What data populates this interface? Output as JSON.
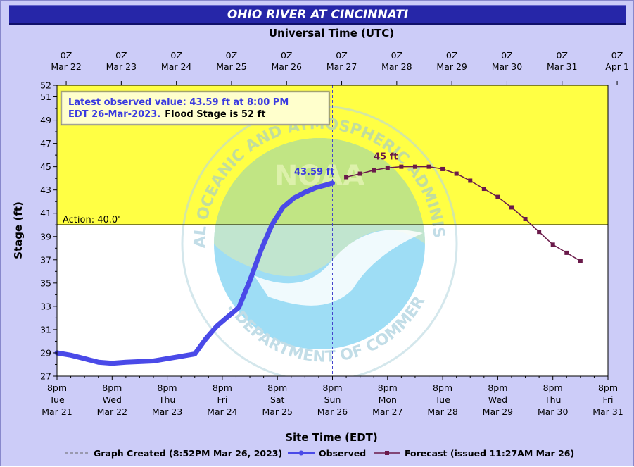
{
  "header": {
    "title": "OHIO RIVER AT CINCINNATI"
  },
  "top_axis": {
    "title": "Universal Time (UTC)",
    "labels": [
      [
        "0Z",
        "Mar 22"
      ],
      [
        "0Z",
        "Mar 23"
      ],
      [
        "0Z",
        "Mar 24"
      ],
      [
        "0Z",
        "Mar 25"
      ],
      [
        "0Z",
        "Mar 26"
      ],
      [
        "0Z",
        "Mar 27"
      ],
      [
        "0Z",
        "Mar 28"
      ],
      [
        "0Z",
        "Mar 29"
      ],
      [
        "0Z",
        "Mar 30"
      ],
      [
        "0Z",
        "Mar 31"
      ],
      [
        "0Z",
        "Apr  1"
      ]
    ]
  },
  "bottom_axis": {
    "title": "Site Time (EDT)",
    "labels": [
      [
        "8pm",
        "Tue",
        "Mar 21"
      ],
      [
        "8pm",
        "Wed",
        "Mar 22"
      ],
      [
        "8pm",
        "Thu",
        "Mar 23"
      ],
      [
        "8pm",
        "Fri",
        "Mar 24"
      ],
      [
        "8pm",
        "Sat",
        "Mar 25"
      ],
      [
        "8pm",
        "Sun",
        "Mar 26"
      ],
      [
        "8pm",
        "Mon",
        "Mar 27"
      ],
      [
        "8pm",
        "Tue",
        "Mar 28"
      ],
      [
        "8pm",
        "Wed",
        "Mar 29"
      ],
      [
        "8pm",
        "Thu",
        "Mar 30"
      ],
      [
        "8pm",
        "Fri",
        "Mar 31"
      ]
    ]
  },
  "info_box": {
    "line1": "Latest observed value: 43.59 ft at 8:00 PM",
    "line2": "EDT 26-Mar-2023.",
    "line2_b": "Flood Stage is 52 ft"
  },
  "legend": {
    "created": "Graph Created (8:52PM Mar 26, 2023)",
    "observed": "Observed",
    "forecast": "Forecast (issued 11:27AM Mar 26)"
  },
  "watermark": {
    "top_text": "NATIONAL OCEANIC AND ATMOSPHERIC ADMINISTRATION",
    "bottom_text": "U.S. DEPARTMENT OF COMMERCE",
    "center_text": "NOAA"
  },
  "colors": {
    "header_bg": "#2626a8",
    "observed": "#4a4ae8",
    "forecast": "#6a1a4a",
    "action_band": "#ffff44",
    "frame": "#ccccf8"
  },
  "chart_data": {
    "type": "line",
    "title": "OHIO RIVER AT CINCINNATI",
    "xlabel": "Site Time (EDT)",
    "x2label": "Universal Time (UTC)",
    "ylabel": "Stage (ft)",
    "x_unit": "days after 8pm Tue Mar 21 (EDT)",
    "xlim": [
      0,
      10
    ],
    "ylim": [
      27,
      52
    ],
    "yticks": [
      27,
      29,
      31,
      33,
      35,
      37,
      39,
      41,
      43,
      45,
      47,
      49,
      51,
      52
    ],
    "grid": false,
    "action_stage": {
      "value": 40.0,
      "label": "Action: 40.0'"
    },
    "flood_stage": 52,
    "now_marker": {
      "x": 5
    },
    "series": [
      {
        "name": "Observed",
        "x": [
          0,
          0.25,
          0.5,
          0.75,
          1.0,
          1.25,
          1.5,
          1.75,
          2.0,
          2.25,
          2.5,
          2.7,
          2.9,
          3.1,
          3.3,
          3.5,
          3.7,
          3.9,
          4.1,
          4.3,
          4.5,
          4.7,
          4.9,
          5.0
        ],
        "values": [
          29.0,
          28.8,
          28.5,
          28.2,
          28.1,
          28.2,
          28.25,
          28.3,
          28.5,
          28.7,
          28.9,
          30.2,
          31.3,
          32.1,
          32.9,
          35.2,
          37.8,
          40.0,
          41.5,
          42.3,
          42.8,
          43.2,
          43.45,
          43.59
        ],
        "end_label": "43.59 ft"
      },
      {
        "name": "Forecast (issued 11:27AM Mar 26)",
        "x": [
          5.25,
          5.5,
          5.75,
          6.0,
          6.25,
          6.5,
          6.75,
          7.0,
          7.25,
          7.5,
          7.75,
          8.0,
          8.25,
          8.5,
          8.75,
          9.0,
          9.25,
          9.5
        ],
        "values": [
          44.1,
          44.4,
          44.7,
          44.9,
          45.0,
          45.0,
          45.0,
          44.8,
          44.4,
          43.8,
          43.1,
          42.4,
          41.5,
          40.5,
          39.4,
          38.3,
          37.6,
          36.9
        ],
        "peak_label": "45 ft"
      }
    ]
  }
}
